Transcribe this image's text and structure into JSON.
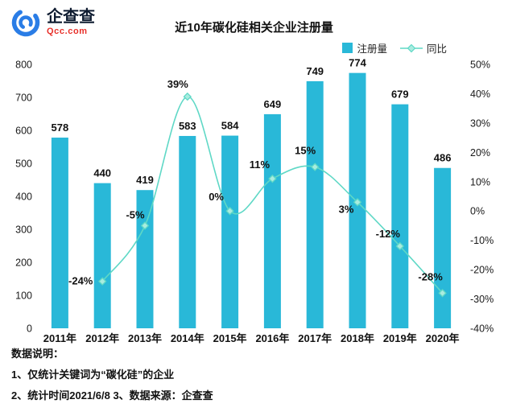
{
  "brand": {
    "name": "企查查",
    "domain": "Qcc.com",
    "logo_color": "#2a7de6",
    "domain_color": "#e8302a"
  },
  "footer": {
    "heading": "数据说明：",
    "line1": "1、仅统计关键词为“碳化硅”的企业",
    "line2": "2、统计时间2021/6/8   3、数据来源：企查查"
  },
  "chart_data": {
    "type": "bar+line",
    "title": "近10年碳化硅相关企业注册量",
    "xlabel": "",
    "ylabel": "",
    "categories": [
      "2011年",
      "2012年",
      "2013年",
      "2014年",
      "2015年",
      "2016年",
      "2017年",
      "2018年",
      "2019年",
      "2020年"
    ],
    "series": [
      {
        "name": "注册量",
        "type": "bar",
        "axis": "left",
        "color": "#29b8d8",
        "values": [
          578,
          440,
          419,
          583,
          584,
          649,
          749,
          774,
          679,
          486
        ]
      },
      {
        "name": "同比",
        "type": "line",
        "axis": "right",
        "color": "#5fd8c6",
        "marker_fill": "#a9ecdf",
        "unit": "%",
        "values": [
          null,
          -24,
          -5,
          39,
          0,
          11,
          15,
          3,
          -12,
          -28
        ]
      }
    ],
    "left_axis": {
      "min": 0,
      "max": 800,
      "step": 100
    },
    "right_axis": {
      "min": -40,
      "max": 50,
      "step": 10,
      "format": "percent"
    },
    "grid": false,
    "legend_position": "top-right",
    "yoy_label_offsets": [
      null,
      [
        -27,
        0
      ],
      [
        -12,
        -13
      ],
      [
        -12,
        -15
      ],
      [
        -17,
        -17
      ],
      [
        -16,
        -17
      ],
      [
        -12,
        -20
      ],
      [
        -14,
        9
      ],
      [
        -15,
        -15
      ],
      [
        -15,
        -20
      ]
    ]
  }
}
